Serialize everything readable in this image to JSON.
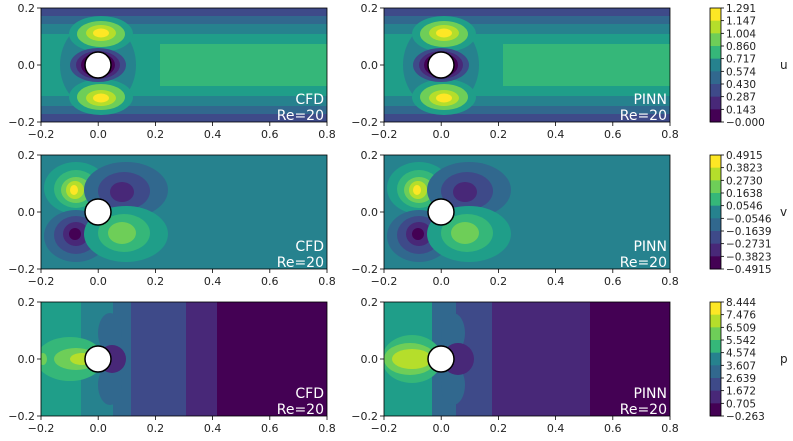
{
  "chart_data": {
    "type": "heatmap",
    "description_free": true,
    "x_ticks": [
      "−0.2",
      "0.0",
      "0.2",
      "0.4",
      "0.6",
      "0.8"
    ],
    "y_ticks": [
      "0.2",
      "0.0",
      "−0.2"
    ],
    "xlim": [
      -0.2,
      0.8
    ],
    "ylim": [
      -0.2,
      0.2
    ],
    "cylinder": {
      "center": [
        0.0,
        0.0
      ],
      "radius": 0.05
    },
    "panels": [
      {
        "field": "u",
        "source": "CFD",
        "label_line1": "CFD",
        "label_line2": "Re=20"
      },
      {
        "field": "u",
        "source": "PINN",
        "label_line1": "PINN",
        "label_line2": "Re=20"
      },
      {
        "field": "v",
        "source": "CFD",
        "label_line1": "CFD",
        "label_line2": "Re=20"
      },
      {
        "field": "v",
        "source": "PINN",
        "label_line1": "PINN",
        "label_line2": "Re=20"
      },
      {
        "field": "p",
        "source": "CFD",
        "label_line1": "CFD",
        "label_line2": "Re=20"
      },
      {
        "field": "p",
        "source": "PINN",
        "label_line1": "PINN",
        "label_line2": "Re=20"
      }
    ],
    "colorbars": [
      {
        "name": "u",
        "ticks": [
          "1.291",
          "1.147",
          "1.004",
          "0.860",
          "0.717",
          "0.574",
          "0.430",
          "0.287",
          "0.143",
          "−0.000"
        ]
      },
      {
        "name": "v",
        "ticks": [
          "0.4915",
          "0.3823",
          "0.2730",
          "0.1638",
          "0.0546",
          "−0.0546",
          "−0.1639",
          "−0.2731",
          "−0.3823",
          "−0.4915"
        ]
      },
      {
        "name": "p",
        "ticks": [
          "8.444",
          "7.476",
          "6.509",
          "5.542",
          "4.574",
          "3.607",
          "2.639",
          "1.672",
          "0.705",
          "−0.263"
        ]
      }
    ],
    "colors": {
      "c0": "#440154",
      "c1": "#482878",
      "c2": "#3e4a89",
      "c3": "#31688e",
      "c4": "#26828e",
      "c5": "#1f9e89",
      "c6": "#35b779",
      "c7": "#6ece58",
      "c8": "#b5de2b",
      "c9": "#fde725"
    }
  }
}
